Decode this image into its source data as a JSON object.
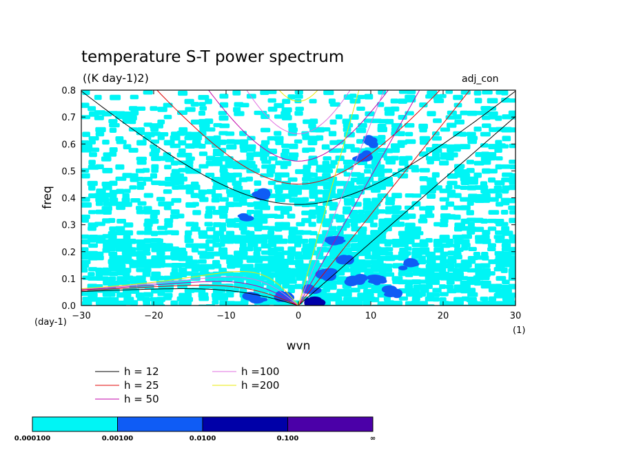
{
  "chart_data": {
    "type": "heatmap",
    "title": "temperature S-T power spectrum",
    "subtitle": "((K day-1)2)",
    "annotation": "adj_con",
    "xlabel": "wvn",
    "ylabel": "freq",
    "x_unit": "(1)",
    "y_unit": "(day-1)",
    "xlim": [
      -30,
      30
    ],
    "ylim": [
      0,
      0.8
    ],
    "x_ticks": [
      "−30",
      "−20",
      "−10",
      "0",
      "10",
      "20",
      "30"
    ],
    "y_ticks": [
      "0.0",
      "0.1",
      "0.2",
      "0.3",
      "0.4",
      "0.5",
      "0.6",
      "0.7",
      "0.8"
    ],
    "grid": false,
    "colorbar": {
      "levels": [
        "0.000100",
        "0.00100",
        "0.0100",
        "0.100",
        "∞"
      ],
      "colors": [
        "#00f5f5",
        "#0f5cf5",
        "#0000a8",
        "#4b00a8"
      ]
    },
    "series": [
      {
        "name": "h = 12",
        "h": 12,
        "color": "#000000"
      },
      {
        "name": "h = 25",
        "h": 25,
        "color": "#e00000"
      },
      {
        "name": "h = 50",
        "h": 50,
        "color": "#c000a8"
      },
      {
        "name": "h =100",
        "h": 100,
        "color": "#e070e0"
      },
      {
        "name": "h =200",
        "h": 200,
        "color": "#e8e800"
      }
    ],
    "blobs": [
      {
        "x": -2,
        "y": 0.035,
        "level": 2
      },
      {
        "x": 2,
        "y": 0.05,
        "level": 2
      },
      {
        "x": 4,
        "y": 0.12,
        "level": 2
      },
      {
        "x": 6.5,
        "y": 0.17,
        "level": 2
      },
      {
        "x": 8,
        "y": 0.09,
        "level": 2
      },
      {
        "x": 11,
        "y": 0.1,
        "level": 2
      },
      {
        "x": 13,
        "y": 0.05,
        "level": 2
      },
      {
        "x": 15,
        "y": 0.15,
        "level": 2
      },
      {
        "x": 5,
        "y": 0.24,
        "level": 2
      },
      {
        "x": -6,
        "y": 0.03,
        "level": 2
      },
      {
        "x": -5,
        "y": 0.41,
        "level": 2
      },
      {
        "x": -7,
        "y": 0.33,
        "level": 2
      },
      {
        "x": 9,
        "y": 0.55,
        "level": 2
      },
      {
        "x": 10,
        "y": 0.61,
        "level": 2
      },
      {
        "x": 2,
        "y": 0.01,
        "level": 3
      }
    ]
  }
}
